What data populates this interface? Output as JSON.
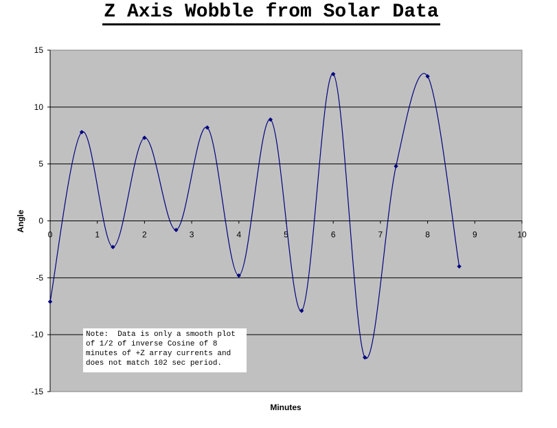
{
  "chart_data": {
    "type": "line",
    "title": "Z Axis Wobble from Solar Data",
    "xlabel": "Minutes",
    "ylabel": "Angle",
    "xlim": [
      0,
      10
    ],
    "ylim": [
      -15,
      15
    ],
    "xticks": [
      "0",
      "1",
      "2",
      "3",
      "4",
      "5",
      "6",
      "7",
      "8",
      "9",
      "10"
    ],
    "yticks": [
      "15",
      "10",
      "5",
      "0",
      "-5",
      "-10",
      "-15"
    ],
    "grid": "horizontal major lines",
    "smooth": true,
    "series": [
      {
        "x": [
          0.0,
          0.67,
          1.33,
          2.0,
          2.67,
          3.33,
          4.0,
          4.67,
          5.33,
          6.0,
          6.67,
          7.33,
          8.0,
          8.67
        ],
        "y": [
          -7.1,
          7.8,
          -2.3,
          7.3,
          -0.8,
          8.2,
          -4.8,
          8.9,
          -7.9,
          12.9,
          -12.0,
          4.8,
          12.7,
          -4.0
        ],
        "color": "#00007f"
      }
    ],
    "annotations": [
      "Note:  Data is only a smooth plot of 1/2 of inverse Cosine of 8 minutes of +Z array currents and does not match 102 sec period."
    ],
    "plot_background": "#c0c0c0",
    "marker_color": "#00007f"
  }
}
